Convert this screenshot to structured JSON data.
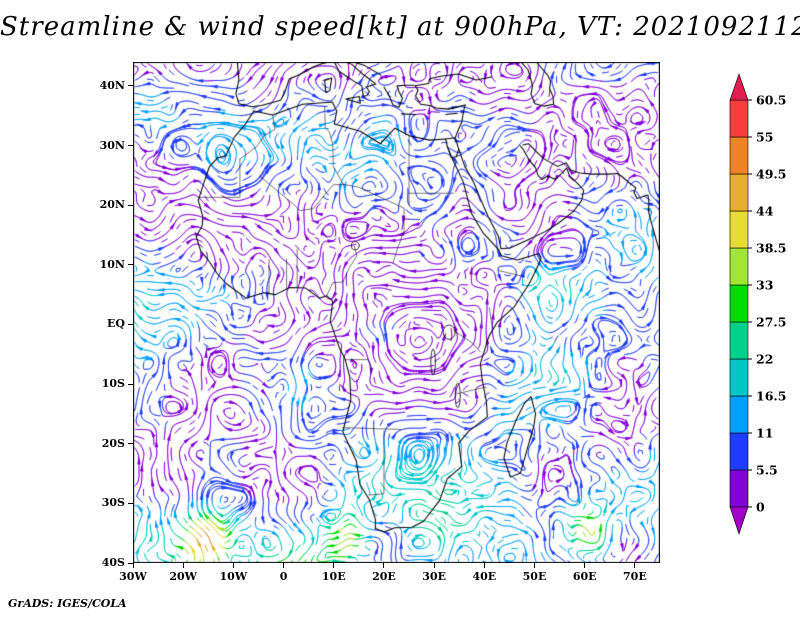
{
  "title": "Streamline & wind speed[kt] at 900hPa, VT: 2021092112",
  "footer": "GrADS: IGES/COLA",
  "chart_data": {
    "type": "streamline",
    "field": "wind speed",
    "units": "kt",
    "pressure_level": "900hPa",
    "valid_time": "2021092112",
    "region": "Africa and surrounding oceans",
    "x_axis": {
      "ticks": [
        "30W",
        "20W",
        "10W",
        "0",
        "10E",
        "20E",
        "30E",
        "40E",
        "50E",
        "60E",
        "70E"
      ],
      "lon_values": [
        -30,
        -20,
        -10,
        0,
        10,
        20,
        30,
        40,
        50,
        60,
        70
      ]
    },
    "y_axis": {
      "ticks": [
        "40N",
        "30N",
        "20N",
        "10N",
        "EQ",
        "10S",
        "20S",
        "30S",
        "40S"
      ],
      "lat_values": [
        40,
        30,
        20,
        10,
        0,
        -10,
        -20,
        -30,
        -40
      ]
    },
    "lon_range": [
      -30,
      75
    ],
    "lat_range": [
      -40,
      44
    ],
    "colorbar": {
      "levels": [
        0,
        5.5,
        11,
        16.5,
        22,
        27.5,
        33,
        38.5,
        44,
        49.5,
        55,
        60.5
      ],
      "colors": [
        "#a000c8",
        "#8200dc",
        "#1e3cff",
        "#00a0ff",
        "#00c8c8",
        "#00d28c",
        "#00dc00",
        "#a0e632",
        "#e6dc32",
        "#e6af2d",
        "#f08228",
        "#fa3c3c",
        "#e11e50"
      ]
    }
  }
}
